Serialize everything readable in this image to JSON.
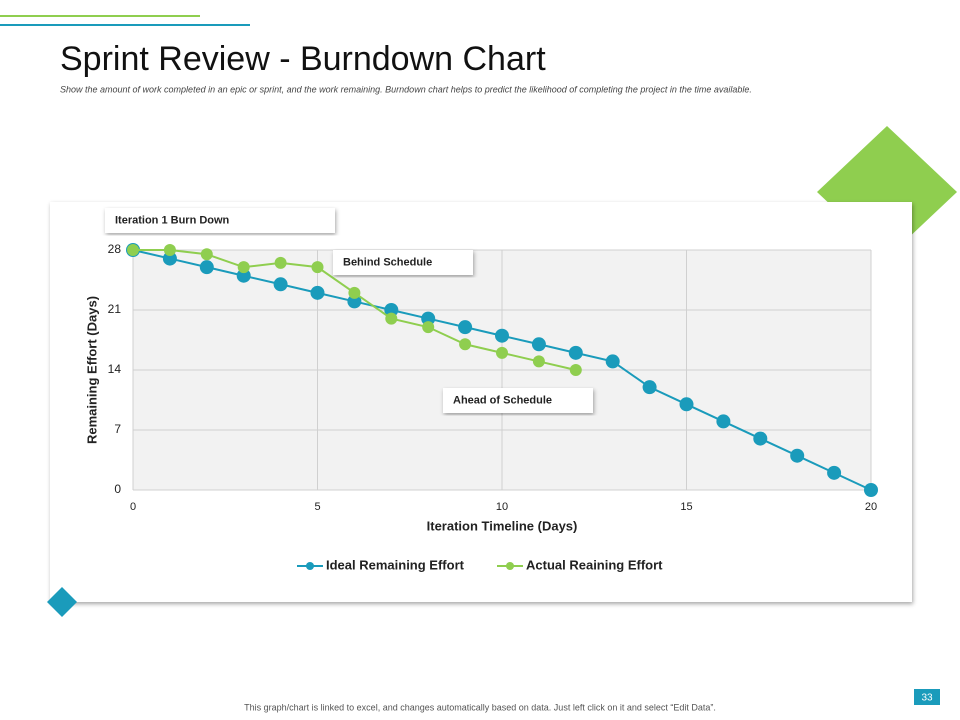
{
  "title": "Sprint Review - Burndown Chart",
  "subtitle": "Show the amount of work completed in an epic or sprint, and the work remaining. Burndown chart helps to predict the likelihood of completing the project in the time available.",
  "footer": "This graph/chart is linked to excel, and changes automatically  based on data. Just left click on it and select “Edit Data”.",
  "page_number": "33",
  "chart_data": {
    "type": "line",
    "annotations": [
      "Iteration 1 Burn Down",
      "Behind Schedule",
      "Ahead of Schedule"
    ],
    "x_label": "Iteration Timeline (Days)",
    "y_label": "Remaining Effort (Days)",
    "x": [
      0,
      1,
      2,
      3,
      4,
      5,
      6,
      7,
      8,
      9,
      10,
      11,
      12,
      13,
      14,
      15,
      16,
      17,
      18,
      19,
      20
    ],
    "series": [
      {
        "name": "Ideal Remaining Effort",
        "color": "#1a9bbb",
        "values": [
          28,
          27,
          26,
          25,
          24,
          23,
          22,
          21,
          20,
          19,
          18,
          17,
          16,
          15,
          12,
          10,
          8,
          6,
          4,
          2,
          0
        ]
      },
      {
        "name": "Actual Reaining Effort",
        "color": "#8fce4f",
        "values": [
          28,
          28,
          27.5,
          26,
          26.5,
          26,
          23,
          20,
          19,
          17,
          16,
          15,
          14,
          null,
          null,
          null,
          null,
          null,
          null,
          null,
          null
        ]
      }
    ],
    "xlim": [
      0,
      20
    ],
    "xticks": [
      0,
      5,
      10,
      15,
      20
    ],
    "ylim": [
      0,
      28
    ],
    "yticks": [
      0,
      7,
      14,
      21,
      28
    ],
    "grid": true,
    "legend": "bottom"
  }
}
